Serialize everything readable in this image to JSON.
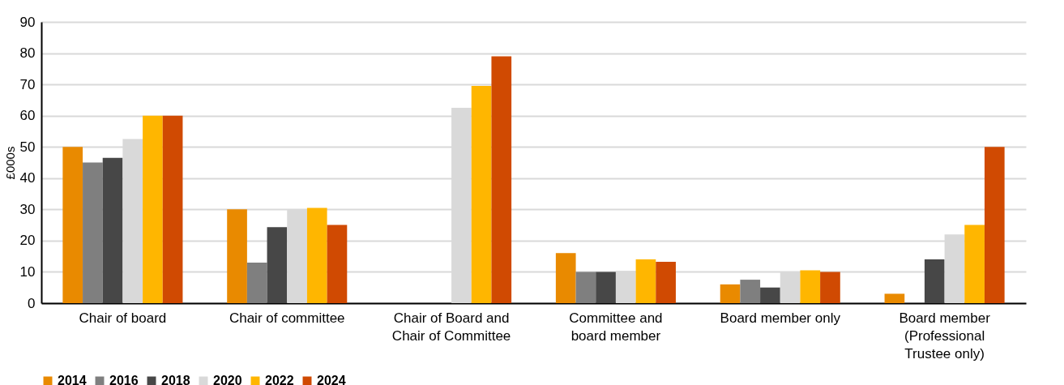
{
  "chart_data": {
    "type": "bar",
    "ylabel": "£000s",
    "categories": [
      "Chair of board",
      "Chair of committee",
      "Chair of Board and\nChair of Committee",
      "Committee and\nboard member",
      "Board member only",
      "Board member\n(Professional\nTrustee only)"
    ],
    "series": [
      {
        "name": "2014",
        "color": "#e98a00",
        "values": [
          50,
          30,
          null,
          16,
          6,
          3
        ]
      },
      {
        "name": "2016",
        "color": "#7f7f7f",
        "values": [
          45,
          13,
          null,
          10,
          7.5,
          null
        ]
      },
      {
        "name": "2018",
        "color": "#474747",
        "values": [
          46.5,
          24.3,
          null,
          10,
          5,
          14
        ]
      },
      {
        "name": "2020",
        "color": "#d9d9d9",
        "values": [
          52.5,
          30,
          62.5,
          10.3,
          10,
          22
        ]
      },
      {
        "name": "2022",
        "color": "#ffb600",
        "values": [
          60,
          30.5,
          69.5,
          14,
          10.5,
          25
        ]
      },
      {
        "name": "2024",
        "color": "#d04a02",
        "values": [
          60,
          25,
          79,
          13.2,
          10,
          50
        ]
      }
    ],
    "ylim": [
      0,
      90
    ],
    "yticks": [
      0,
      10,
      20,
      30,
      40,
      50,
      60,
      70,
      80,
      90
    ],
    "grid": "y",
    "legend": "bottom"
  }
}
